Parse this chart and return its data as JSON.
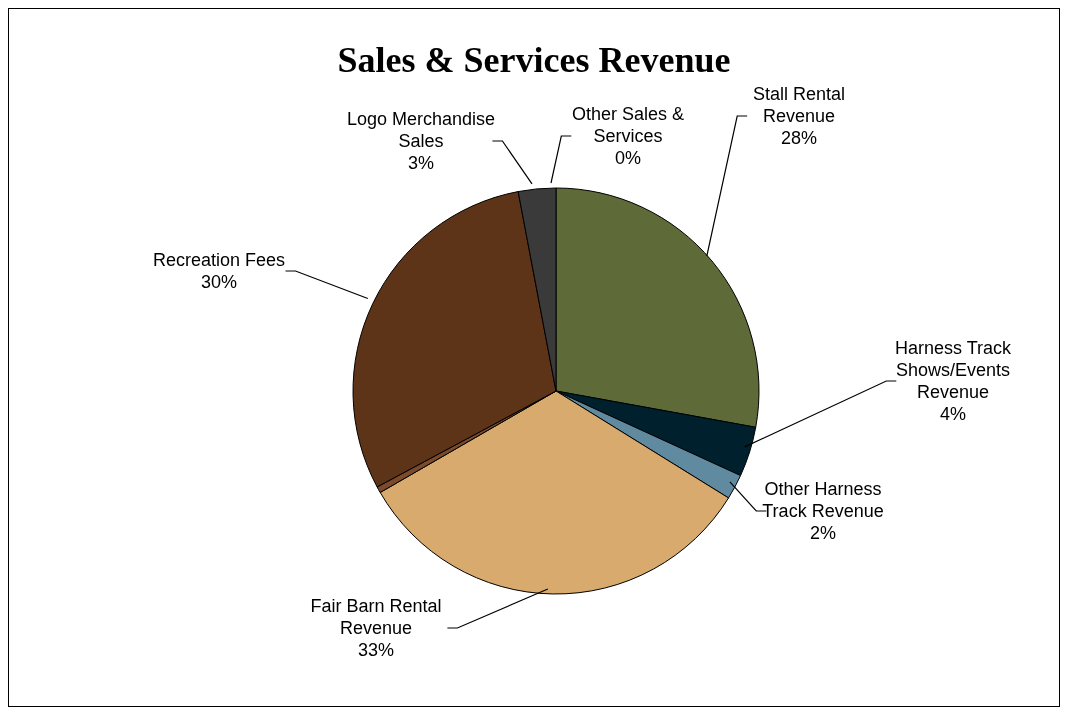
{
  "chart_data": {
    "type": "pie",
    "title": "Sales & Services Revenue",
    "categories": [
      "Stall Rental Revenue",
      "Harness Track Shows/Events Revenue",
      "Other Harness Track Revenue",
      "Fair Barn Rental Revenue",
      null,
      "Recreation Fees",
      "Logo Merchandise Sales",
      "Other Sales & Services"
    ],
    "values": [
      28,
      4,
      2,
      33,
      0.5,
      30,
      3,
      0
    ],
    "value_labels": [
      "28%",
      "4%",
      "2%",
      "33%",
      null,
      "30%",
      "3%",
      "0%"
    ],
    "colors": [
      "#5e6b38",
      "#00202e",
      "#5f8aa0",
      "#d8aa6e",
      "#7a4a2a",
      "#5e3418",
      "#3a3a3a",
      "#9999ff"
    ]
  }
}
